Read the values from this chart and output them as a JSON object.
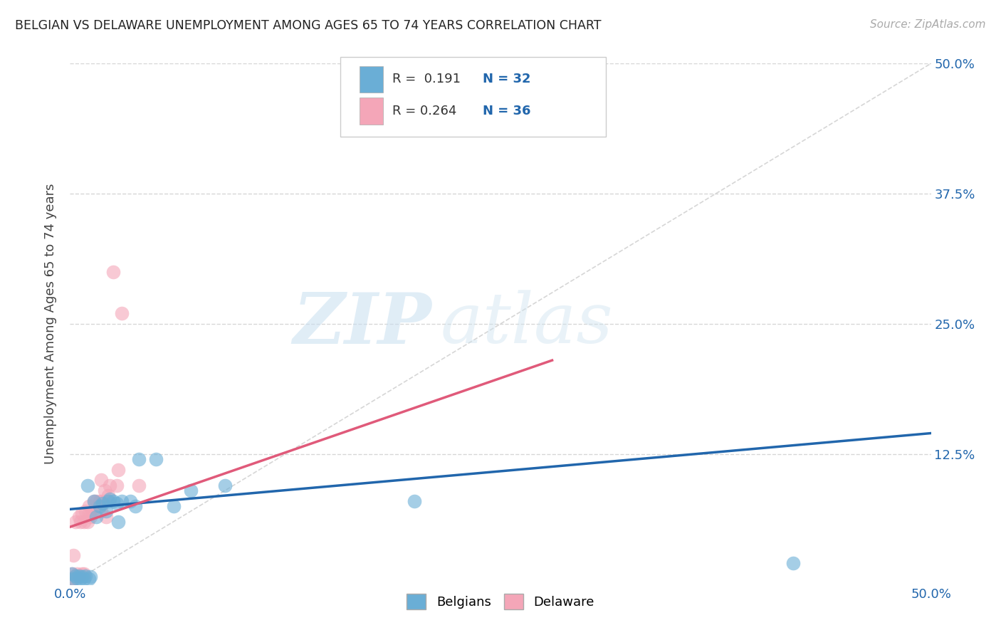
{
  "title": "BELGIAN VS DELAWARE UNEMPLOYMENT AMONG AGES 65 TO 74 YEARS CORRELATION CHART",
  "source": "Source: ZipAtlas.com",
  "ylabel": "Unemployment Among Ages 65 to 74 years",
  "xlim": [
    0.0,
    0.5
  ],
  "ylim": [
    0.0,
    0.5
  ],
  "xticks": [
    0.0,
    0.125,
    0.25,
    0.375,
    0.5
  ],
  "yticks": [
    0.0,
    0.125,
    0.25,
    0.375,
    0.5
  ],
  "xticklabels": [
    "0.0%",
    "",
    "",
    "",
    "50.0%"
  ],
  "right_yticklabels": [
    "",
    "12.5%",
    "25.0%",
    "37.5%",
    "50.0%"
  ],
  "blue_color": "#6aaed6",
  "pink_color": "#f4a6b8",
  "blue_line_color": "#2166ac",
  "pink_line_color": "#e05a7a",
  "diagonal_color": "#cccccc",
  "watermark_zip": "ZIP",
  "watermark_atlas": "atlas",
  "legend_r1": "R =  0.191",
  "legend_n1": "N = 32",
  "legend_r2": "R = 0.264",
  "legend_n2": "N = 36",
  "blue_line_x0": 0.0,
  "blue_line_y0": 0.072,
  "blue_line_x1": 0.5,
  "blue_line_y1": 0.145,
  "pink_line_x0": 0.0,
  "pink_line_y0": 0.055,
  "pink_line_x1": 0.28,
  "pink_line_y1": 0.215,
  "belgians_x": [
    0.001,
    0.002,
    0.003,
    0.004,
    0.005,
    0.006,
    0.007,
    0.008,
    0.009,
    0.01,
    0.011,
    0.012,
    0.014,
    0.015,
    0.017,
    0.019,
    0.021,
    0.022,
    0.023,
    0.025,
    0.027,
    0.028,
    0.03,
    0.035,
    0.038,
    0.04,
    0.05,
    0.06,
    0.07,
    0.09,
    0.2,
    0.42
  ],
  "belgians_y": [
    0.01,
    0.005,
    0.008,
    0.006,
    0.008,
    0.005,
    0.007,
    0.005,
    0.008,
    0.095,
    0.005,
    0.007,
    0.08,
    0.065,
    0.075,
    0.078,
    0.07,
    0.08,
    0.082,
    0.08,
    0.078,
    0.06,
    0.08,
    0.08,
    0.075,
    0.12,
    0.12,
    0.075,
    0.09,
    0.095,
    0.08,
    0.02
  ],
  "delaware_x": [
    0.001,
    0.001,
    0.002,
    0.002,
    0.003,
    0.003,
    0.004,
    0.005,
    0.005,
    0.006,
    0.007,
    0.007,
    0.008,
    0.008,
    0.009,
    0.01,
    0.011,
    0.011,
    0.012,
    0.013,
    0.014,
    0.015,
    0.016,
    0.017,
    0.018,
    0.018,
    0.019,
    0.02,
    0.021,
    0.022,
    0.023,
    0.025,
    0.027,
    0.028,
    0.03,
    0.04
  ],
  "delaware_y": [
    0.005,
    0.01,
    0.028,
    0.005,
    0.008,
    0.06,
    0.01,
    0.008,
    0.065,
    0.06,
    0.01,
    0.068,
    0.01,
    0.06,
    0.07,
    0.06,
    0.068,
    0.075,
    0.065,
    0.07,
    0.08,
    0.08,
    0.075,
    0.08,
    0.07,
    0.1,
    0.08,
    0.09,
    0.065,
    0.085,
    0.095,
    0.3,
    0.095,
    0.11,
    0.26,
    0.095
  ]
}
